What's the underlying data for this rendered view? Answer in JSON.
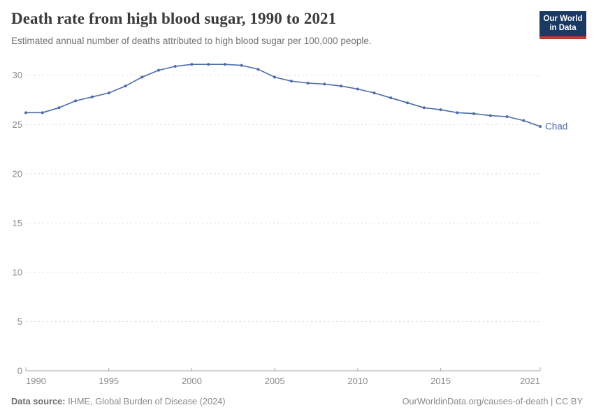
{
  "header": {
    "title": "Death rate from high blood sugar, 1990 to 2021",
    "subtitle": "Estimated annual number of deaths attributed to high blood sugar per 100,000 people."
  },
  "logo": {
    "line1": "Our World",
    "line2": "in Data",
    "bg_color": "#1a3a63",
    "stripe_color": "#c0392b"
  },
  "chart_data": {
    "type": "line",
    "title": "Death rate from high blood sugar, 1990 to 2021",
    "subtitle": "Estimated annual number of deaths attributed to high blood sugar per 100,000 people.",
    "xlabel": "",
    "ylabel": "",
    "x": [
      1990,
      1991,
      1992,
      1993,
      1994,
      1995,
      1996,
      1997,
      1998,
      1999,
      2000,
      2001,
      2002,
      2003,
      2004,
      2005,
      2006,
      2007,
      2008,
      2009,
      2010,
      2011,
      2012,
      2013,
      2014,
      2015,
      2016,
      2017,
      2018,
      2019,
      2020,
      2021
    ],
    "series": [
      {
        "name": "Chad",
        "color": "#4c6ca8",
        "values": [
          26.2,
          26.2,
          26.7,
          27.4,
          27.8,
          28.2,
          28.9,
          29.8,
          30.5,
          30.9,
          31.1,
          31.1,
          31.1,
          31.0,
          30.6,
          29.8,
          29.4,
          29.2,
          29.1,
          28.9,
          28.6,
          28.2,
          27.7,
          27.2,
          26.7,
          26.5,
          26.2,
          26.1,
          25.9,
          25.8,
          25.4,
          24.8
        ]
      }
    ],
    "ylim": [
      0,
      32
    ],
    "y_ticks": [
      0,
      5,
      10,
      15,
      20,
      25,
      30
    ],
    "x_ticks": [
      1990,
      1995,
      2000,
      2005,
      2010,
      2015,
      2021
    ],
    "grid": "dashed horizontal",
    "legend_position": "end-of-line label",
    "colors": {
      "gridline": "#d9d9d9",
      "axis_line": "#a8a8a8",
      "tick_label": "#8a8a8a"
    }
  },
  "footer": {
    "source_label": "Data source:",
    "source_text": " IHME, Global Burden of Disease (2024)",
    "attribution": "OurWorldinData.org/causes-of-death | CC BY"
  }
}
